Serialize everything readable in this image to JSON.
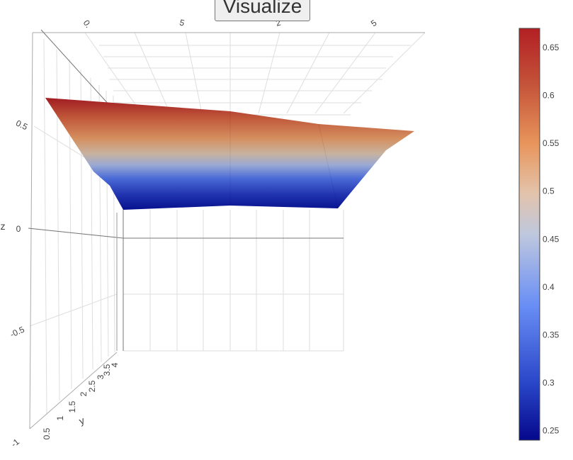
{
  "button": {
    "label": "Visualize"
  },
  "chart_data": {
    "type": "surface",
    "colorscale": "RdBu (reversed)",
    "axes": {
      "x": {
        "title": "",
        "tick_labels": [
          "",
          "0.",
          "5",
          "2",
          "5"
        ]
      },
      "y": {
        "title": "y",
        "tick_labels": [
          "0.5",
          "1",
          "1.5",
          "2",
          "2.5",
          "3",
          "3.5",
          "4"
        ]
      },
      "z": {
        "title": "z",
        "tick_labels": [
          "-1",
          "-0.5",
          "0",
          "0.5"
        ],
        "range": [
          -1,
          0.75
        ]
      }
    },
    "z_values_top_edge_left_to_right": [
      0.67,
      0.65,
      0.63,
      0.6,
      0.58
    ],
    "z_values_bottom_edge_left_to_right": [
      0.25,
      0.25,
      0.25,
      0.25,
      0.25
    ],
    "colorbar": {
      "min": 0.24,
      "max": 0.67,
      "ticks": [
        "0.65",
        "0.6",
        "0.55",
        "0.5",
        "0.45",
        "0.4",
        "0.35",
        "0.3",
        "0.25"
      ],
      "colors": [
        "#05088c",
        "#2a47c9",
        "#6a8ff5",
        "#bfc8de",
        "#e3c3ab",
        "#e8955c",
        "#c5553a",
        "#b21f24"
      ]
    },
    "grid": true
  }
}
